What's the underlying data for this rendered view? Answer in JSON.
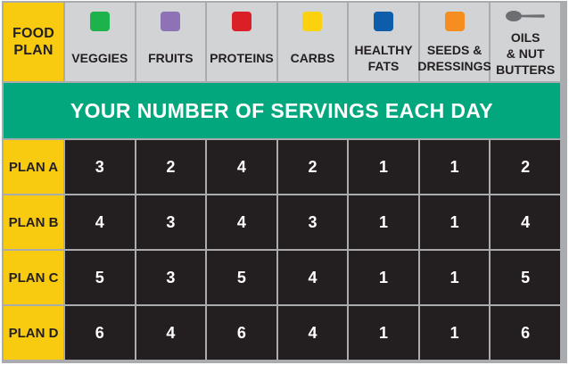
{
  "corner": {
    "line1": "FOOD",
    "line2": "PLAN"
  },
  "columns": [
    {
      "lines": [
        "VEGGIES"
      ],
      "color": "#1db24b",
      "icon": "green-swatch-icon"
    },
    {
      "lines": [
        "FRUITS"
      ],
      "color": "#8e72b5",
      "icon": "purple-swatch-icon"
    },
    {
      "lines": [
        "PROTEINS"
      ],
      "color": "#da1f26",
      "icon": "red-swatch-icon"
    },
    {
      "lines": [
        "CARBS"
      ],
      "color": "#fcd20f",
      "icon": "yellow-swatch-icon"
    },
    {
      "lines": [
        "HEALTHY",
        "FATS"
      ],
      "color": "#0d5dab",
      "icon": "blue-swatch-icon"
    },
    {
      "lines": [
        "SEEDS &",
        "DRESSINGS"
      ],
      "color": "#f58d21",
      "icon": "orange-swatch-icon"
    },
    {
      "lines": [
        "OILS",
        "& NUT",
        "BUTTERS"
      ],
      "color": "#6d6e71",
      "icon": "spoon-icon"
    }
  ],
  "banner": "YOUR NUMBER OF SERVINGS EACH DAY",
  "rows": [
    {
      "label": "PLAN A",
      "values": [
        "3",
        "2",
        "4",
        "2",
        "1",
        "1",
        "2"
      ]
    },
    {
      "label": "PLAN B",
      "values": [
        "4",
        "3",
        "4",
        "3",
        "1",
        "1",
        "4"
      ]
    },
    {
      "label": "PLAN C",
      "values": [
        "5",
        "3",
        "5",
        "4",
        "1",
        "1",
        "5"
      ]
    },
    {
      "label": "PLAN D",
      "values": [
        "6",
        "4",
        "6",
        "4",
        "1",
        "1",
        "6"
      ]
    }
  ],
  "colors": {
    "yellow": "#f9cb10",
    "green_banner": "#03a77e",
    "header_gray": "#d1d3d4",
    "cell_dark": "#231f20"
  }
}
